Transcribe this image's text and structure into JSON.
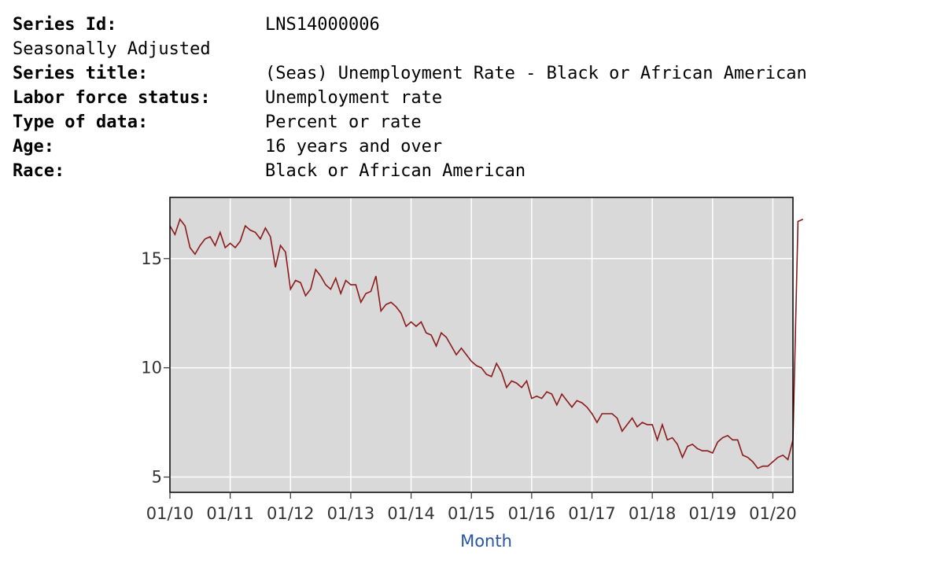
{
  "meta": {
    "series_id_label": "Series Id:",
    "series_id_value": "LNS14000006",
    "seasonally_adjusted": "Seasonally Adjusted",
    "series_title_label": "Series title:",
    "series_title_value": "(Seas) Unemployment Rate - Black or African American",
    "labor_force_label": "Labor force status:",
    "labor_force_value": "Unemployment rate",
    "type_label": "Type of data:",
    "type_value": "Percent or rate",
    "age_label": "Age:",
    "age_value": "16 years and over",
    "race_label": "Race:",
    "race_value": "Black or African American"
  },
  "chart_data": {
    "type": "line",
    "title": "",
    "xlabel": "Month",
    "ylabel": "",
    "x_ticks": [
      "01/10",
      "01/11",
      "01/12",
      "01/13",
      "01/14",
      "01/15",
      "01/16",
      "01/17",
      "01/18",
      "01/19",
      "01/20"
    ],
    "y_ticks": [
      5,
      10,
      15
    ],
    "xlim": [
      "2010-01",
      "2020-05"
    ],
    "ylim": [
      4.3,
      17.8
    ],
    "grid": true,
    "line_color": "#8b1a1a",
    "plot_background": "#d9d9d9",
    "series": [
      {
        "values": [
          16.5,
          16.1,
          16.8,
          16.5,
          15.5,
          15.2,
          15.6,
          15.9,
          16.0,
          15.6,
          16.2,
          15.5,
          15.7,
          15.5,
          15.8,
          16.5,
          16.3,
          16.2,
          15.9,
          16.4,
          16.0,
          14.6,
          15.6,
          15.3,
          13.6,
          14.0,
          13.9,
          13.3,
          13.6,
          14.5,
          14.2,
          13.8,
          13.6,
          14.1,
          13.4,
          14.0,
          13.8,
          13.8,
          13.0,
          13.4,
          13.5,
          14.2,
          12.6,
          12.9,
          13.0,
          12.8,
          12.5,
          11.9,
          12.1,
          11.9,
          12.1,
          11.6,
          11.5,
          11.0,
          11.6,
          11.4,
          11.0,
          10.6,
          10.9,
          10.6,
          10.3,
          10.1,
          10.0,
          9.7,
          9.6,
          10.2,
          9.8,
          9.1,
          9.4,
          9.3,
          9.1,
          9.4,
          8.6,
          8.7,
          8.6,
          8.9,
          8.8,
          8.3,
          8.8,
          8.5,
          8.2,
          8.5,
          8.4,
          8.2,
          7.9,
          7.5,
          7.9,
          7.9,
          7.9,
          7.7,
          7.1,
          7.4,
          7.7,
          7.3,
          7.5,
          7.4,
          7.4,
          6.7,
          7.4,
          6.7,
          6.8,
          6.5,
          5.9,
          6.4,
          6.5,
          6.3,
          6.2,
          6.2,
          6.1,
          6.6,
          6.8,
          6.9,
          6.7,
          6.7,
          6.0,
          5.9,
          5.7,
          5.4,
          5.5,
          5.5,
          5.7,
          5.9,
          6.0,
          5.8,
          6.7,
          16.7,
          16.8
        ]
      }
    ]
  }
}
